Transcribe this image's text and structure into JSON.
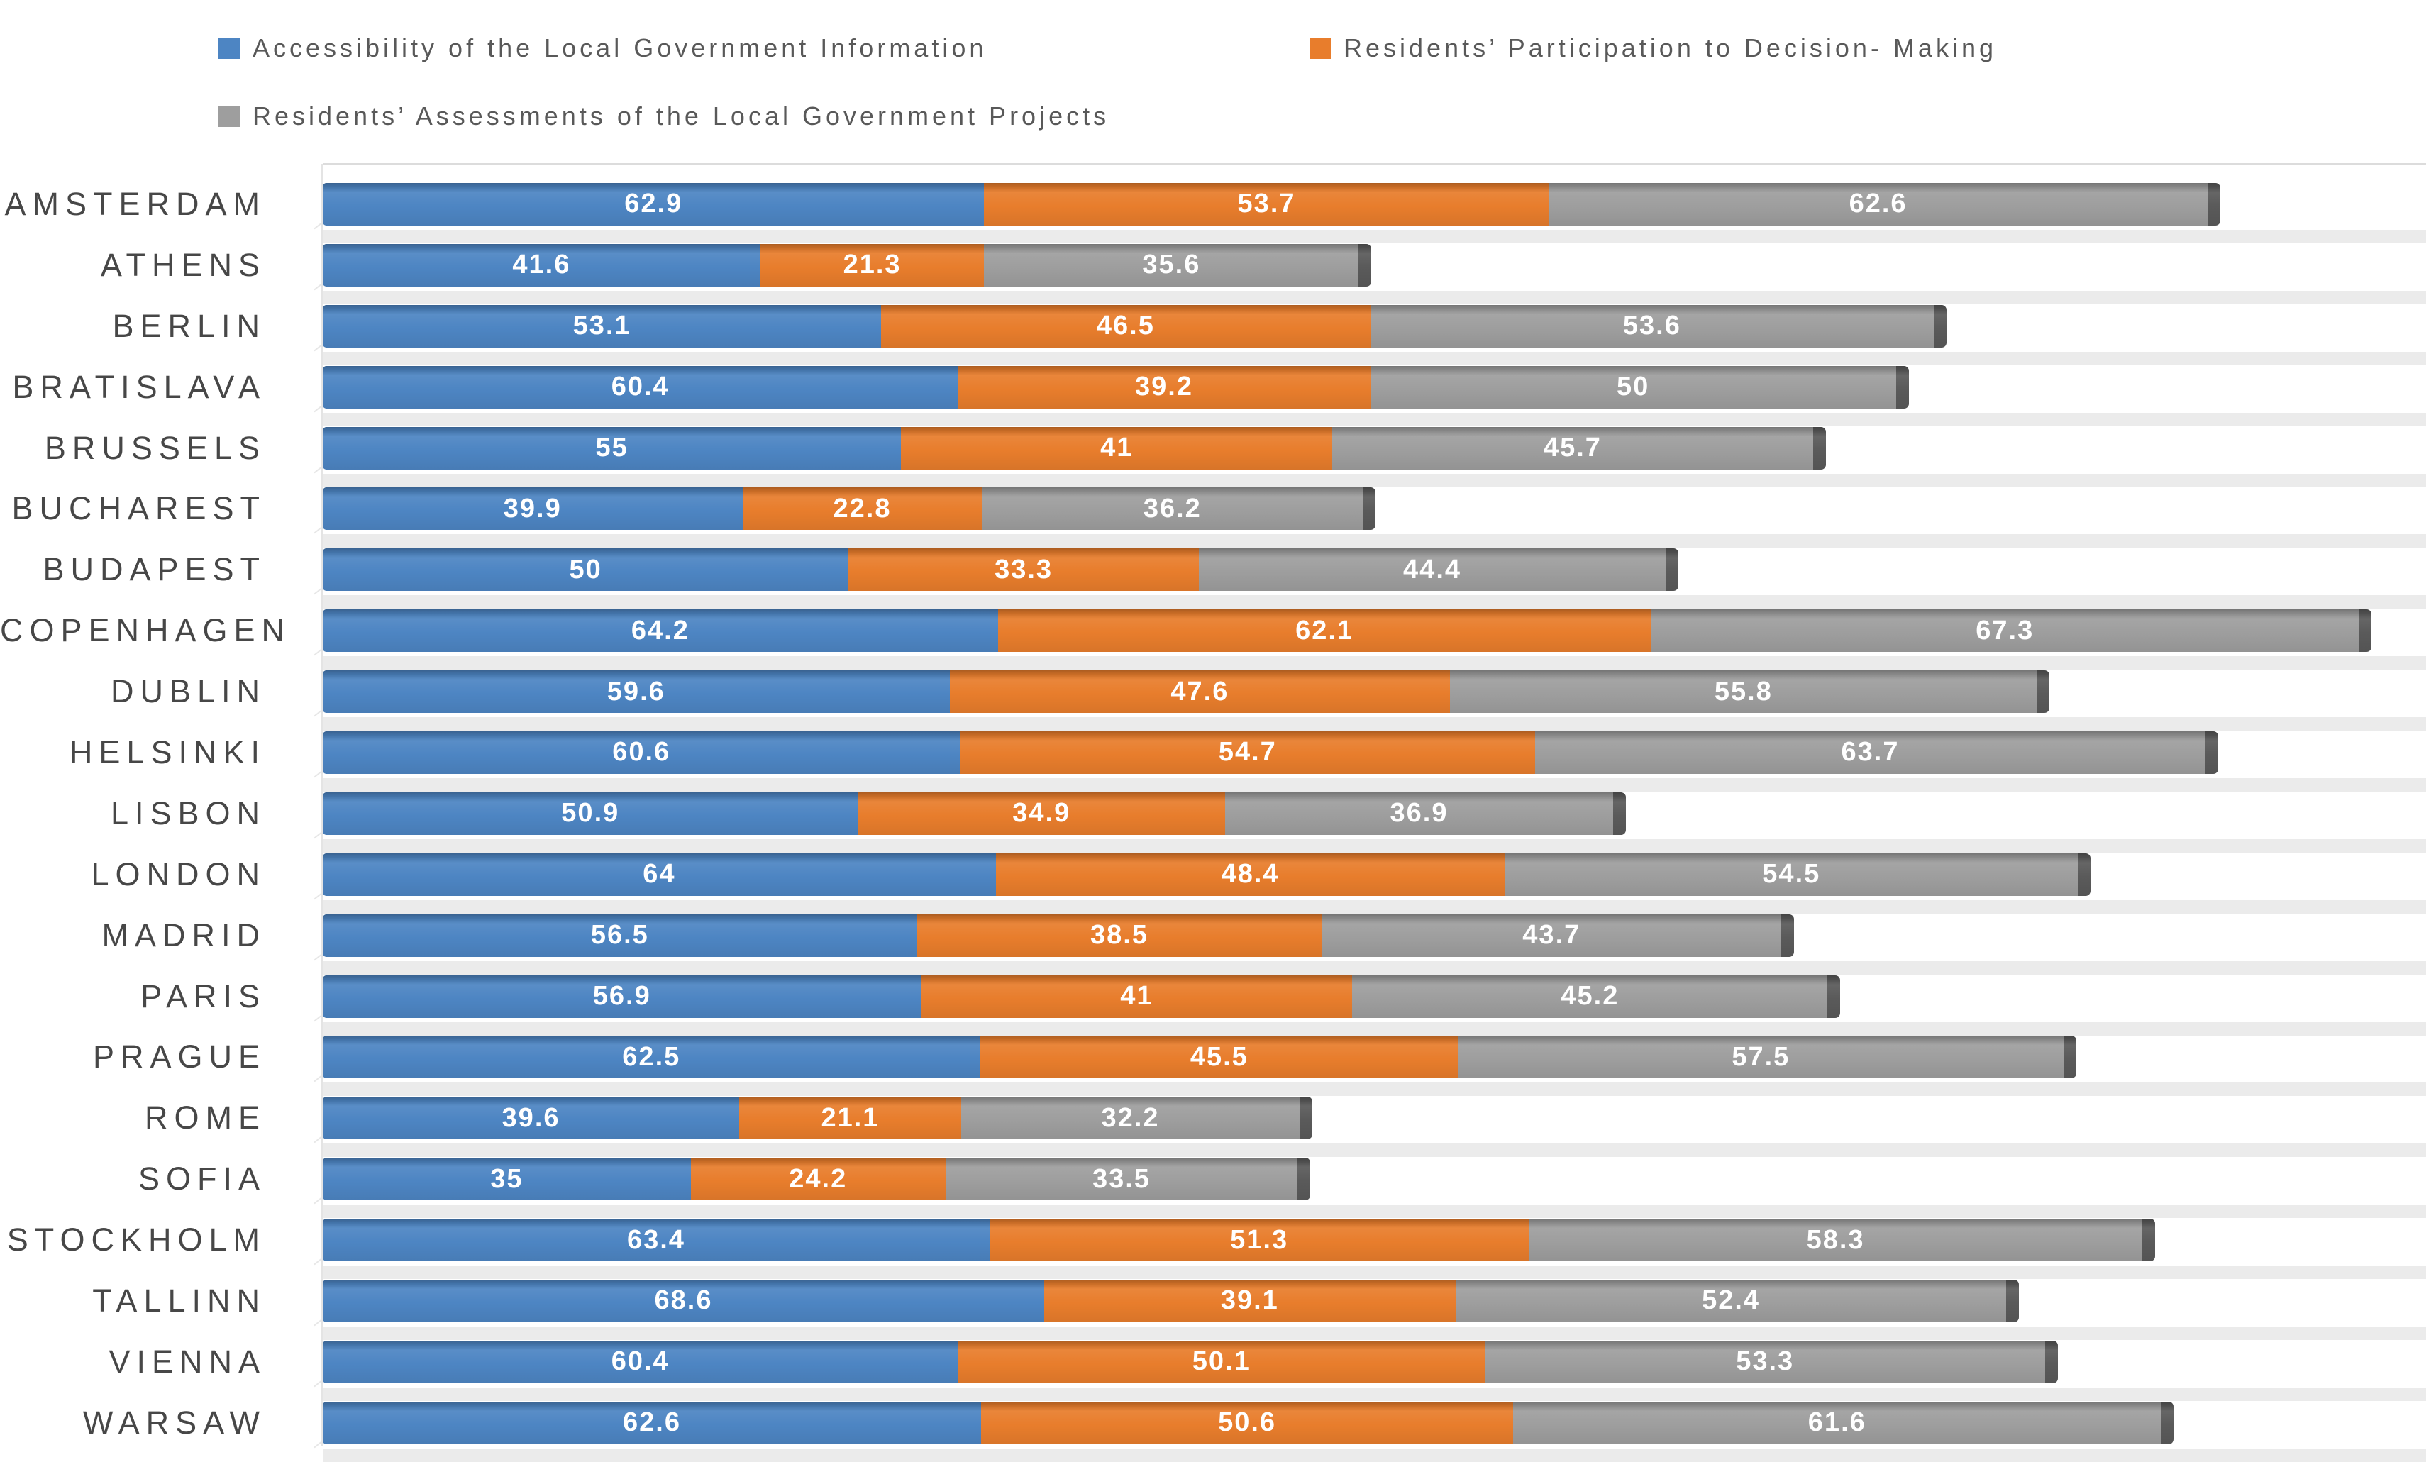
{
  "chart_data": {
    "type": "bar",
    "orientation": "horizontal",
    "stacked": true,
    "title": "",
    "xlabel": "",
    "ylabel": "",
    "xlim": [
      0,
      200
    ],
    "gridlines": false,
    "legend_position": "top",
    "value_labels": "inside, white bold",
    "cap_color": "#5a5a5a",
    "floor_shadow_color": "#ebebeb",
    "categories": [
      "AMSTERDAM",
      "ATHENS",
      "BERLIN",
      "BRATISLAVA",
      "BRUSSELS",
      "BUCHAREST",
      "BUDAPEST",
      "COPENHAGEN",
      "DUBLIN",
      "HELSINKI",
      "LISBON",
      "LONDON",
      "MADRID",
      "PARIS",
      "PRAGUE",
      "ROME",
      "SOFIA",
      "STOCKHOLM",
      "TALLINN",
      "VIENNA",
      "WARSAW"
    ],
    "series": [
      {
        "name": "Accessibility of the Local Government Information",
        "color": "#4d85c3",
        "values": [
          62.9,
          41.6,
          53.1,
          60.4,
          55,
          39.9,
          50,
          64.2,
          59.6,
          60.6,
          50.9,
          64,
          56.5,
          56.9,
          62.5,
          39.6,
          35,
          63.4,
          68.6,
          60.4,
          62.6
        ]
      },
      {
        "name": "Residents’ Participation to Decision- Making",
        "color": "#e87d2c",
        "values": [
          53.7,
          21.3,
          46.5,
          39.2,
          41,
          22.8,
          33.3,
          62.1,
          47.6,
          54.7,
          34.9,
          48.4,
          38.5,
          41,
          45.5,
          21.1,
          24.2,
          51.3,
          39.1,
          50.1,
          50.6
        ]
      },
      {
        "name": "Residents’ Assessments of the Local Government Projects",
        "color": "#9e9e9e",
        "values": [
          62.6,
          35.6,
          53.6,
          50,
          45.7,
          36.2,
          44.4,
          67.3,
          55.8,
          63.7,
          36.9,
          54.5,
          43.7,
          45.2,
          57.5,
          32.2,
          33.5,
          58.3,
          52.4,
          53.3,
          61.6
        ]
      }
    ]
  }
}
